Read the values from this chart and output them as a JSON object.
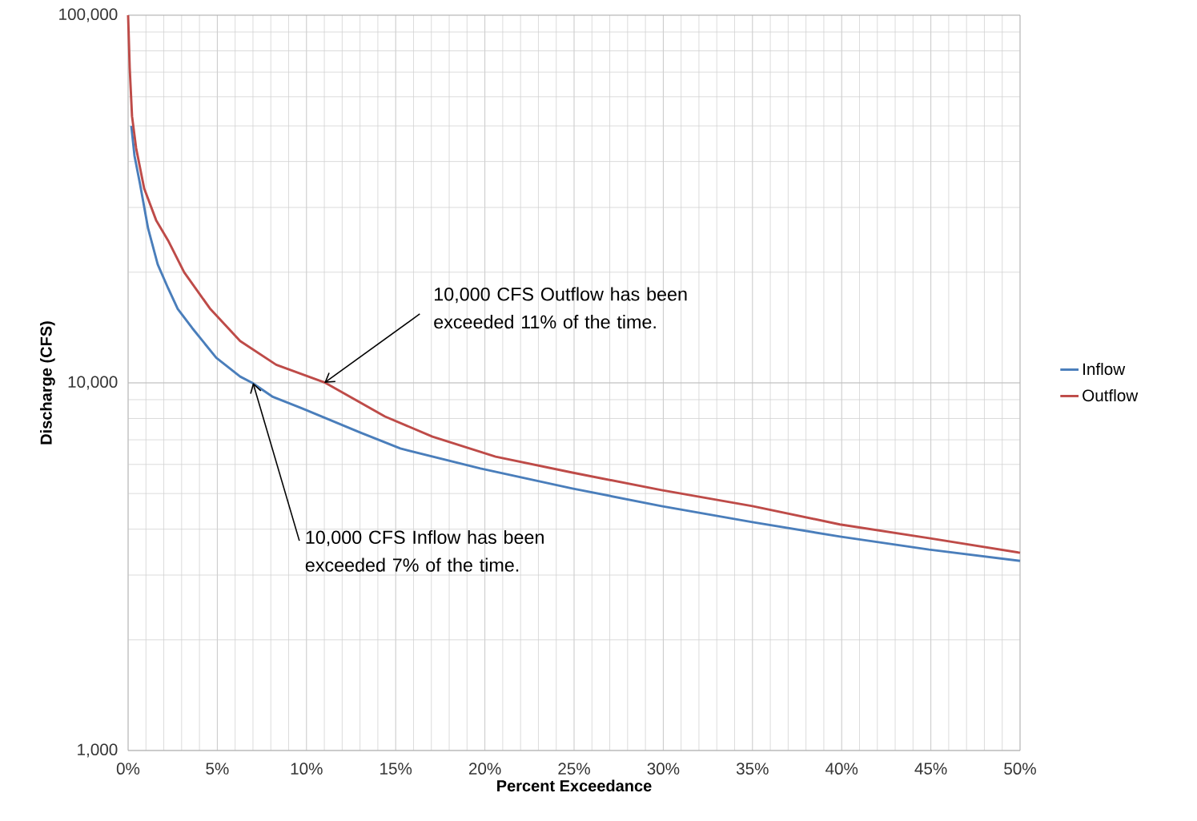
{
  "chart_data": {
    "type": "line",
    "xlabel": "Percent Exceedance",
    "ylabel": "Discharge (CFS)",
    "log": "y",
    "grid": true,
    "legend": "right",
    "marker": "none",
    "line_style": "solid",
    "xlim": [
      0,
      50
    ],
    "ylim": [
      1000,
      100000
    ],
    "xticks": [
      {
        "value": 0,
        "label": "0%"
      },
      {
        "value": 5,
        "label": "5%"
      },
      {
        "value": 10,
        "label": "10%"
      },
      {
        "value": 15,
        "label": "15%"
      },
      {
        "value": 20,
        "label": "20%"
      },
      {
        "value": 25,
        "label": "25%"
      },
      {
        "value": 30,
        "label": "30%"
      },
      {
        "value": 35,
        "label": "35%"
      },
      {
        "value": 40,
        "label": "40%"
      },
      {
        "value": 45,
        "label": "45%"
      },
      {
        "value": 50,
        "label": "50%"
      }
    ],
    "yticks": [
      {
        "value": 1000,
        "label": "1,000"
      },
      {
        "value": 10000,
        "label": "10,000"
      },
      {
        "value": 100000,
        "label": "100,000"
      }
    ],
    "series": [
      {
        "name": "Inflow",
        "color": "#4a7ebb",
        "x": [
          0.18,
          0.36,
          0.67,
          1.12,
          1.66,
          2.24,
          2.78,
          3.59,
          4.94,
          6.28,
          6.96,
          8.08,
          10,
          13,
          15.26,
          19.75,
          24.9,
          29.9,
          35,
          39.9,
          44.9,
          50
        ],
        "values": [
          50000,
          41400,
          34700,
          26300,
          21000,
          18100,
          15900,
          14100,
          11700,
          10400,
          10000,
          9180,
          8430,
          7330,
          6630,
          5850,
          5160,
          4620,
          4180,
          3820,
          3520,
          3280
        ]
      },
      {
        "name": "Outflow",
        "color": "#be4b48",
        "x": [
          0,
          0.09,
          0.22,
          0.45,
          0.9,
          1.57,
          2.24,
          3.14,
          4.58,
          6.28,
          8.3,
          11.06,
          14.4,
          17.06,
          20.6,
          24.9,
          29.9,
          35,
          39.9,
          44.9,
          50
        ],
        "values": [
          100000,
          71800,
          53100,
          43500,
          33800,
          27700,
          24400,
          20000,
          15950,
          13000,
          11200,
          10000,
          8100,
          7140,
          6300,
          5700,
          5110,
          4620,
          4120,
          3780,
          3450
        ]
      }
    ],
    "annotations": [
      {
        "text": "10,000 CFS Outflow has been exceeded 11% of the time.",
        "x": 11,
        "y": 10000
      },
      {
        "text": "10,000 CFS Inflow has been exceeded 7% of the time.",
        "x": 7,
        "y": 10000
      }
    ]
  }
}
